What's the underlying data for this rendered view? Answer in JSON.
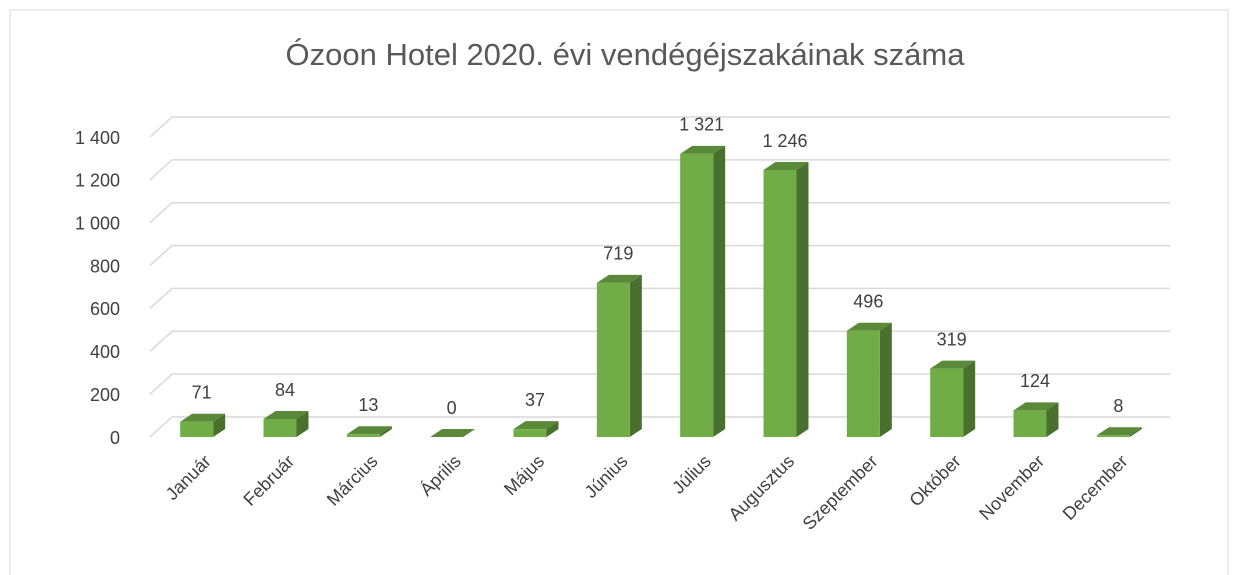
{
  "chart_data": {
    "type": "bar3d",
    "title": "Ózoon Hotel 2020. évi vendégéjszakáinak száma",
    "categories": [
      "Január",
      "Február",
      "Március",
      "Április",
      "Május",
      "Június",
      "Július",
      "Augusztus",
      "Szeptember",
      "Október",
      "November",
      "December"
    ],
    "values": [
      71,
      84,
      13,
      0,
      37,
      719,
      1321,
      1246,
      496,
      319,
      124,
      8
    ],
    "value_labels": [
      "71",
      "84",
      "13",
      "0",
      "37",
      "719",
      "1 321",
      "1 246",
      "496",
      "319",
      "124",
      "8"
    ],
    "color": "#70ad47",
    "ylim": [
      0,
      1400
    ],
    "yticks": [
      0,
      200,
      400,
      600,
      800,
      {
        "value": 1000,
        "label": "1 000"
      },
      {
        "value": 1200,
        "label": "1 200"
      },
      {
        "value": 1400,
        "label": "1 400"
      }
    ],
    "grid": true
  }
}
